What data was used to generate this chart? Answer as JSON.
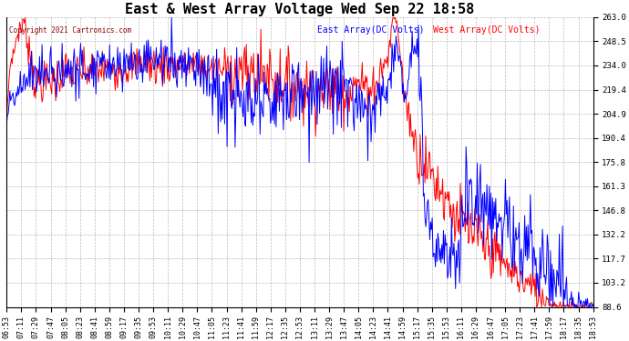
{
  "title": "East & West Array Voltage Wed Sep 22 18:58",
  "copyright_text": "Copyright 2021 Cartronics.com",
  "legend_east": "East Array(DC Volts)",
  "legend_west": "West Array(DC Volts)",
  "east_color": "blue",
  "west_color": "red",
  "yticks": [
    88.6,
    103.2,
    117.7,
    132.2,
    146.8,
    161.3,
    175.8,
    190.4,
    204.9,
    219.4,
    234.0,
    248.5,
    263.0
  ],
  "ymin": 88.6,
  "ymax": 263.0,
  "background_color": "#ffffff",
  "plot_bg_color": "#ffffff",
  "grid_color": "#aaaaaa",
  "title_fontsize": 11,
  "tick_fontsize": 6.5,
  "n_points": 730
}
